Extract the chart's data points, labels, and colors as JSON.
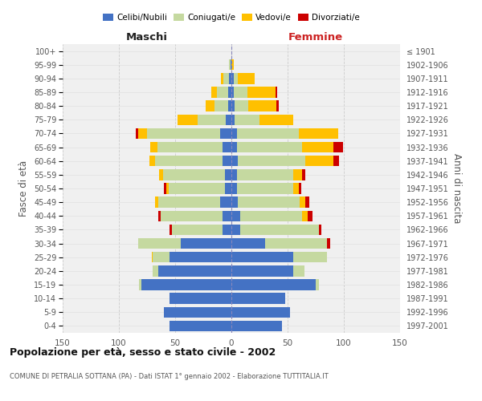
{
  "age_groups": [
    "0-4",
    "5-9",
    "10-14",
    "15-19",
    "20-24",
    "25-29",
    "30-34",
    "35-39",
    "40-44",
    "45-49",
    "50-54",
    "55-59",
    "60-64",
    "65-69",
    "70-74",
    "75-79",
    "80-84",
    "85-89",
    "90-94",
    "95-99",
    "100+"
  ],
  "birth_years": [
    "1997-2001",
    "1992-1996",
    "1987-1991",
    "1982-1986",
    "1977-1981",
    "1972-1976",
    "1967-1971",
    "1962-1966",
    "1957-1961",
    "1952-1956",
    "1947-1951",
    "1942-1946",
    "1937-1941",
    "1932-1936",
    "1927-1931",
    "1922-1926",
    "1917-1921",
    "1912-1916",
    "1907-1911",
    "1902-1906",
    "≤ 1901"
  ],
  "maschi": {
    "celibi": [
      55,
      60,
      55,
      80,
      65,
      55,
      45,
      8,
      8,
      10,
      6,
      6,
      8,
      8,
      10,
      5,
      3,
      3,
      2,
      1,
      0
    ],
    "coniugati": [
      0,
      0,
      0,
      2,
      5,
      15,
      38,
      45,
      55,
      55,
      50,
      55,
      60,
      58,
      65,
      25,
      12,
      10,
      5,
      1,
      0
    ],
    "vedovi": [
      0,
      0,
      0,
      0,
      0,
      1,
      0,
      0,
      0,
      3,
      2,
      3,
      5,
      6,
      8,
      18,
      8,
      5,
      2,
      0,
      0
    ],
    "divorziati": [
      0,
      0,
      0,
      0,
      0,
      0,
      0,
      2,
      2,
      0,
      2,
      0,
      0,
      0,
      2,
      0,
      0,
      0,
      0,
      0,
      0
    ]
  },
  "femmine": {
    "nubili": [
      45,
      52,
      48,
      75,
      55,
      55,
      30,
      8,
      8,
      6,
      5,
      5,
      6,
      5,
      5,
      3,
      3,
      2,
      2,
      0,
      0
    ],
    "coniugate": [
      0,
      0,
      0,
      3,
      10,
      30,
      55,
      70,
      55,
      55,
      50,
      50,
      60,
      58,
      55,
      22,
      12,
      12,
      4,
      0,
      0
    ],
    "vedove": [
      0,
      0,
      0,
      0,
      0,
      0,
      0,
      0,
      5,
      5,
      5,
      8,
      25,
      28,
      35,
      30,
      25,
      25,
      15,
      2,
      0
    ],
    "divorziate": [
      0,
      0,
      0,
      0,
      0,
      0,
      3,
      2,
      4,
      3,
      2,
      3,
      5,
      8,
      0,
      0,
      2,
      2,
      0,
      0,
      0
    ]
  },
  "colors": {
    "celibi": "#4472C4",
    "coniugati": "#c5d9a0",
    "vedovi": "#ffc000",
    "divorziati": "#cc0000"
  },
  "xlim": 150,
  "title": "Popolazione per età, sesso e stato civile - 2002",
  "subtitle": "COMUNE DI PETRALIA SOTTANA (PA) - Dati ISTAT 1° gennaio 2002 - Elaborazione TUTTITALIA.IT",
  "ylabel_left": "Fasce di età",
  "ylabel_right": "Anni di nascita",
  "xlabel_maschi": "Maschi",
  "xlabel_femmine": "Femmine",
  "bg_color": "#f0f0f0",
  "legend_labels": [
    "Celibi/Nubili",
    "Coniugati/e",
    "Vedovi/e",
    "Divorziati/e"
  ]
}
